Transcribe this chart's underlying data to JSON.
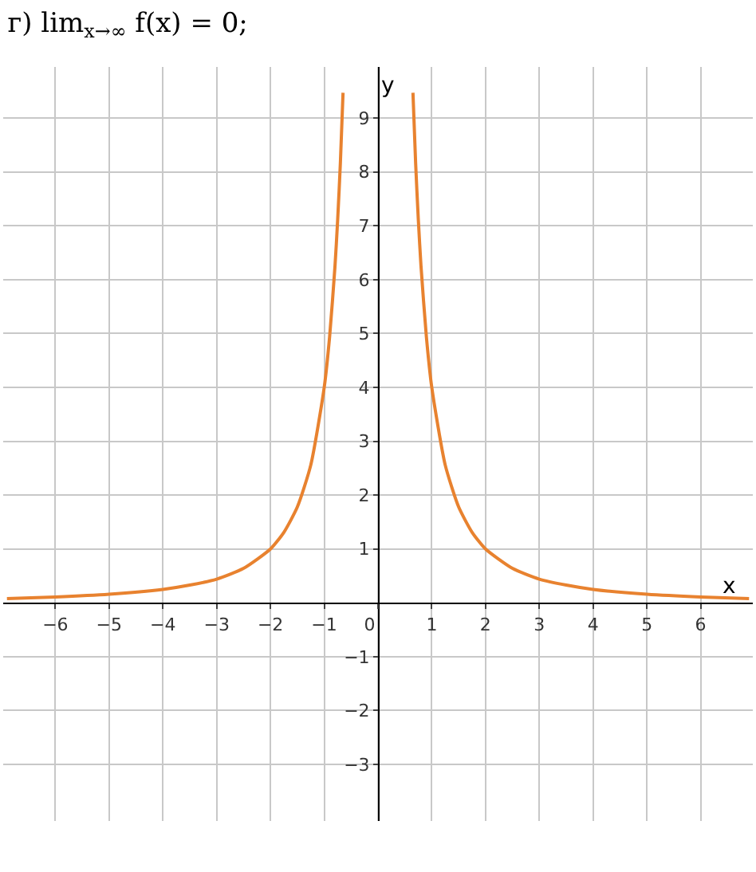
{
  "chart_data": {
    "type": "line",
    "title": "г) lim$_{x→∞}$ f(x) = 0;",
    "xlabel": "x",
    "ylabel": "y",
    "x": [
      -6.9,
      -6,
      -5,
      -4,
      -3.5,
      -3,
      -2.5,
      -2,
      -1.75,
      -1.5,
      -1.25,
      -1,
      -0.9,
      -0.8,
      -0.75,
      -0.7,
      -0.65,
      0,
      0.65,
      0.7,
      0.75,
      0.8,
      0.9,
      1,
      1.25,
      1.5,
      1.75,
      2,
      2.5,
      3,
      3.5,
      4,
      5,
      6,
      6.9
    ],
    "series": [
      {
        "color": "#e8822f",
        "values": [
          0.08,
          0.11,
          0.16,
          0.25,
          0.33,
          0.44,
          0.64,
          1,
          1.31,
          1.78,
          2.56,
          4,
          4.94,
          6.25,
          7.11,
          8.16,
          9.47,
          null,
          9.47,
          8.16,
          7.11,
          6.25,
          4.94,
          4,
          2.56,
          1.78,
          1.31,
          1,
          0.64,
          0.44,
          0.33,
          0.25,
          0.16,
          0.11,
          0.08
        ]
      }
    ],
    "xlim": [
      -6.97,
      6.97
    ],
    "ylim": [
      -4.05,
      9.95
    ],
    "xticks": [
      -6,
      -5,
      -4,
      -3,
      -2,
      -1,
      0,
      1,
      2,
      3,
      4,
      5,
      6
    ],
    "yticks": [
      -3,
      -2,
      -1,
      1,
      2,
      3,
      4,
      5,
      6,
      7,
      8,
      9
    ],
    "grid": true,
    "marker": "none",
    "line_style": "solid"
  }
}
